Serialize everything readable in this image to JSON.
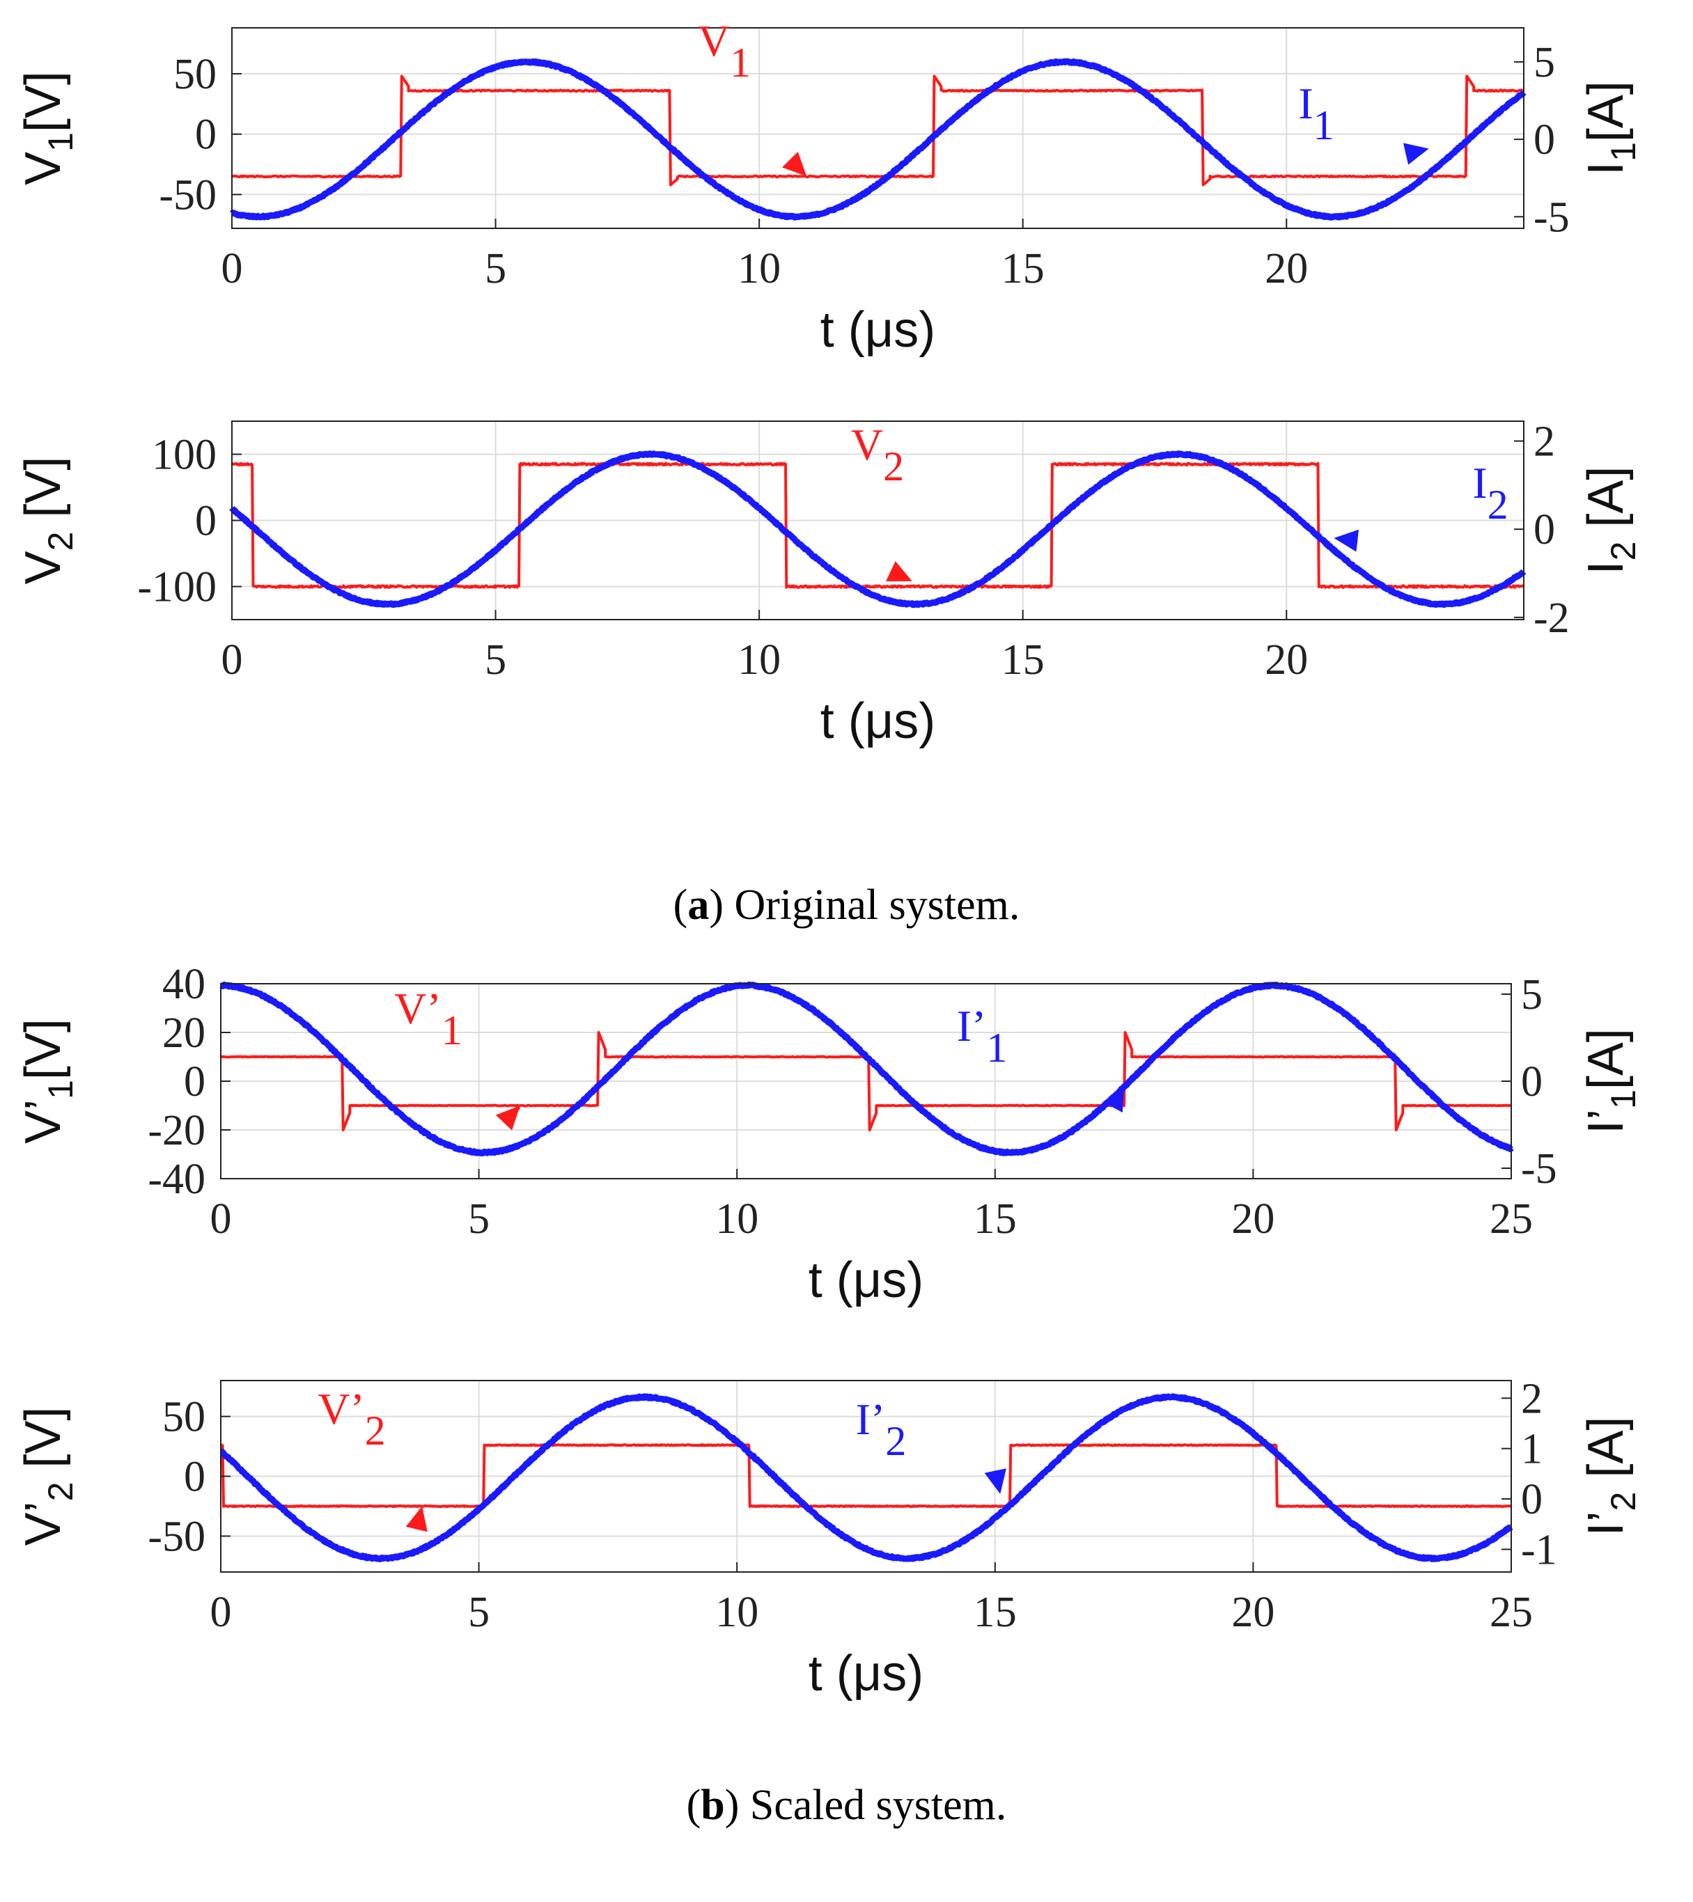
{
  "figure": {
    "caption_a": {
      "label": "a",
      "text": ") Original system.",
      "open": "("
    },
    "caption_b": {
      "label": "b",
      "text": ") Scaled system.",
      "open": "("
    }
  },
  "colors": {
    "voltage": "#ff1a1a",
    "current": "#1a1aff",
    "grid": "#dcdcdc",
    "axis": "#222222"
  },
  "chart_data": [
    {
      "id": "a1",
      "type": "line",
      "title": "",
      "xlabel": "t (μs)",
      "xlim": [
        0,
        24.5
      ],
      "xticks": [
        0,
        5,
        10,
        15,
        20
      ],
      "ylabel_left": {
        "main": "V",
        "sub": "1",
        "rest": "[V]"
      },
      "ylabel_right": {
        "main": "I",
        "sub": "1",
        "rest": "[A]"
      },
      "ylim_left": [
        -78,
        88
      ],
      "yticks_left": [
        -50,
        0,
        50
      ],
      "ylim_right": [
        -5.75,
        7.2
      ],
      "yticks_right": [
        -5,
        0,
        5
      ],
      "series": [
        {
          "name": "V1",
          "axis": "left",
          "kind": "square",
          "low": -35,
          "high": 36,
          "period": 10.1,
          "rise": 3.2,
          "fall": 8.3,
          "overshoot_rise": 48,
          "overshoot_fall": -42
        },
        {
          "name": "I1",
          "axis": "right",
          "kind": "sine",
          "amplitude": 5.0,
          "offset": 0.0,
          "period": 10.2,
          "peak_t": 5.6
        }
      ],
      "annotations": [
        {
          "series": "V1",
          "main": "V",
          "sub": "1",
          "target_t": 10.9,
          "target_axis": "left",
          "target_v": -35
        },
        {
          "series": "I1",
          "main": "I",
          "sub": "1",
          "target_t": 22.7,
          "target_axis": "right",
          "target_v": -0.6
        }
      ]
    },
    {
      "id": "a2",
      "type": "line",
      "title": "",
      "xlabel": "t (μs)",
      "xlim": [
        0,
        24.5
      ],
      "xticks": [
        0,
        5,
        10,
        15,
        20
      ],
      "ylabel_left": {
        "main": "V",
        "sub": "2",
        "rest": " [V]"
      },
      "ylabel_right": {
        "main": "I",
        "sub": "2",
        "rest": " [A]"
      },
      "ylim_left": [
        -150,
        150
      ],
      "yticks_left": [
        -100,
        0,
        100
      ],
      "ylim_right": [
        -2.05,
        2.45
      ],
      "yticks_right": [
        -2,
        0,
        2
      ],
      "series": [
        {
          "name": "V2",
          "axis": "left",
          "kind": "square",
          "low": -100,
          "high": 85,
          "period": 10.1,
          "rise": 5.45,
          "fall": 0.4
        },
        {
          "name": "I2",
          "axis": "right",
          "kind": "sine",
          "amplitude": 1.7,
          "offset": 0.0,
          "period": 10.0,
          "peak_t": 7.95
        }
      ],
      "annotations": [
        {
          "series": "V2",
          "main": "V",
          "sub": "2",
          "target_t": 12.9,
          "target_axis": "left",
          "target_v": -92
        },
        {
          "series": "I2",
          "main": "I",
          "sub": "2",
          "target_t": 20.9,
          "target_axis": "right",
          "target_v": -0.2
        }
      ]
    },
    {
      "id": "b1",
      "type": "line",
      "title": "",
      "xlabel": "t (μs)",
      "xlim": [
        0,
        25
      ],
      "xticks": [
        0,
        5,
        10,
        15,
        20,
        25
      ],
      "ylabel_left": {
        "main": "V’",
        "sub": "1",
        "rest": "[V]"
      },
      "ylabel_right": {
        "main": "I’",
        "sub": "1",
        "rest": "[A]"
      },
      "ylim_left": [
        -40,
        40
      ],
      "yticks_left": [
        -40,
        -20,
        0,
        20,
        40
      ],
      "ylim_right": [
        -5.6,
        5.6
      ],
      "yticks_right": [
        -5,
        0,
        5
      ],
      "series": [
        {
          "name": "V'1",
          "axis": "left",
          "kind": "square",
          "low": -10,
          "high": 10,
          "period": 10.2,
          "rise": 7.3,
          "fall": 2.35,
          "overshoot_rise": 20,
          "overshoot_fall": -20
        },
        {
          "name": "I'1",
          "axis": "right",
          "kind": "sine",
          "amplitude": 4.8,
          "offset": 0.7,
          "period": 10.2,
          "peak_t": 10.2
        }
      ],
      "annotations": [
        {
          "series": "V'1",
          "main": "V’",
          "sub": "1",
          "target_t": 5.8,
          "target_axis": "left",
          "target_v": -10
        },
        {
          "series": "I'1",
          "main": "I’",
          "sub": "1",
          "target_t": 17.5,
          "target_axis": "right",
          "target_v": -0.3
        }
      ]
    },
    {
      "id": "b2",
      "type": "line",
      "title": "",
      "xlabel": "t (μs)",
      "xlim": [
        0,
        25
      ],
      "xticks": [
        0,
        5,
        10,
        15,
        20,
        25
      ],
      "ylabel_left": {
        "main": "V’",
        "sub": "2",
        "rest": " [V]"
      },
      "ylabel_right": {
        "main": "I’",
        "sub": "2",
        "rest": " [A]"
      },
      "ylim_left": [
        -80,
        80
      ],
      "yticks_left": [
        -50,
        0,
        50
      ],
      "ylim_right": [
        -1.45,
        2.35
      ],
      "yticks_right": [
        -1,
        0,
        1,
        2
      ],
      "series": [
        {
          "name": "V'2",
          "axis": "left",
          "kind": "square",
          "low": -25,
          "high": 26,
          "period": 10.2,
          "rise": 5.1,
          "fall": 10.25
        },
        {
          "name": "I'2",
          "axis": "right",
          "kind": "sine",
          "amplitude": 1.6,
          "offset": 0.42,
          "period": 10.2,
          "peak_t": 8.2
        }
      ],
      "annotations": [
        {
          "series": "V'2",
          "main": "V’",
          "sub": "2",
          "target_t": 3.9,
          "target_axis": "left",
          "target_v": -25
        },
        {
          "series": "I'2",
          "main": "I’",
          "sub": "2",
          "target_t": 15.1,
          "target_axis": "right",
          "target_v": 0.1
        }
      ]
    }
  ]
}
